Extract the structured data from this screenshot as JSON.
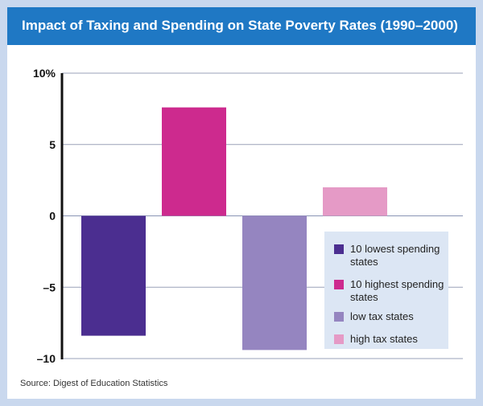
{
  "title": "Impact of Taxing and Spending on State Poverty Rates (1990–2000)",
  "source": "Source: Digest of Education Statistics",
  "chart_data": {
    "type": "bar",
    "title": "Impact of Taxing and Spending on State Poverty Rates (1990–2000)",
    "ylim": [
      -10,
      10
    ],
    "yticks": [
      10,
      5,
      0,
      -5,
      -10
    ],
    "ytick_labels": [
      "10%",
      "5",
      "0",
      "–5",
      "–10"
    ],
    "grid": true,
    "legend_position": "bottom-right",
    "series": [
      {
        "name": "10 lowest spending states",
        "value": -8.4,
        "color": "#4b2e90"
      },
      {
        "name": "10 highest spending states",
        "value": 7.6,
        "color": "#cd2a8e"
      },
      {
        "name": "low tax states",
        "value": -9.4,
        "color": "#9585c0"
      },
      {
        "name": "high tax states",
        "value": 2.0,
        "color": "#e59ac6"
      }
    ]
  }
}
